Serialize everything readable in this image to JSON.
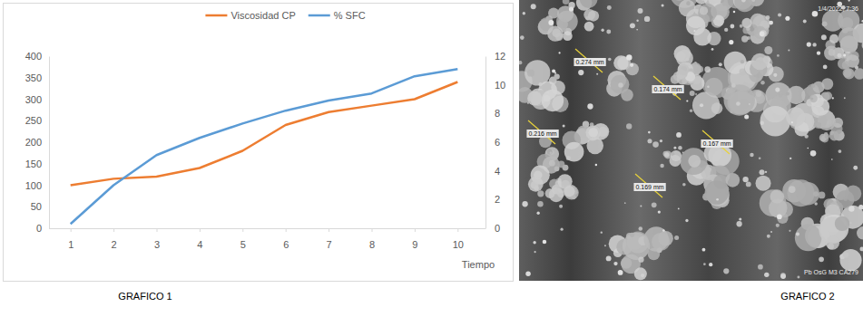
{
  "chart_data": {
    "type": "line",
    "x_label": "Tiempo",
    "categories": [
      "1",
      "2",
      "3",
      "4",
      "5",
      "6",
      "7",
      "8",
      "9",
      "10"
    ],
    "series": [
      {
        "name": "Viscosidad CP",
        "color": "#ed7d31",
        "values": [
          100,
          115,
          120,
          140,
          180,
          240,
          270,
          285,
          300,
          340
        ]
      },
      {
        "name": "% SFC",
        "color": "#5b9bd5",
        "axis": "y2",
        "values": [
          0.3,
          3.0,
          5.1,
          6.3,
          7.3,
          8.2,
          8.9,
          9.4,
          10.6,
          11.1
        ]
      }
    ],
    "ylim": [
      0,
      400
    ],
    "yticks": [
      0,
      50,
      100,
      150,
      200,
      250,
      300,
      350,
      400
    ],
    "y2lim": [
      0,
      12
    ],
    "y2ticks": [
      0,
      2,
      4,
      6,
      8,
      10,
      12
    ],
    "grid": false,
    "legend": "top"
  },
  "figure": {
    "captions": [
      "GRAFICO 1",
      "GRAFICO 2"
    ],
    "micrograph": {
      "timestamp": "1/4/2022, 7:36",
      "label": "Pb OsG M3 CA279",
      "measurements": [
        "0.274 mm",
        "0.174 mm",
        "0.216 mm",
        "0.167 mm",
        "0.169 mm"
      ]
    }
  }
}
